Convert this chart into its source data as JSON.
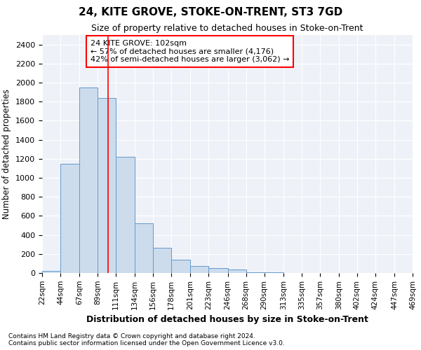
{
  "title": "24, KITE GROVE, STOKE-ON-TRENT, ST3 7GD",
  "subtitle": "Size of property relative to detached houses in Stoke-on-Trent",
  "xlabel": "Distribution of detached houses by size in Stoke-on-Trent",
  "ylabel": "Number of detached properties",
  "bar_color": "#ccdcec",
  "bar_edge_color": "#6699cc",
  "vline_x": 102,
  "vline_color": "red",
  "annotation_line1": "24 KITE GROVE: 102sqm",
  "annotation_line2": "← 57% of detached houses are smaller (4,176)",
  "annotation_line3": "42% of semi-detached houses are larger (3,062) →",
  "bin_edges": [
    22,
    44,
    67,
    89,
    111,
    134,
    156,
    178,
    201,
    223,
    246,
    268,
    290,
    313,
    335,
    357,
    380,
    402,
    424,
    447,
    469
  ],
  "counts": [
    25,
    1150,
    1950,
    1840,
    1220,
    520,
    265,
    140,
    75,
    50,
    35,
    10,
    5,
    3,
    2,
    1,
    1,
    0,
    0,
    0
  ],
  "ylim": [
    0,
    2500
  ],
  "yticks": [
    0,
    200,
    400,
    600,
    800,
    1000,
    1200,
    1400,
    1600,
    1800,
    2000,
    2200,
    2400
  ],
  "footnote1": "Contains HM Land Registry data © Crown copyright and database right 2024.",
  "footnote2": "Contains public sector information licensed under the Open Government Licence v3.0.",
  "plot_bg_color": "#eef2f8"
}
